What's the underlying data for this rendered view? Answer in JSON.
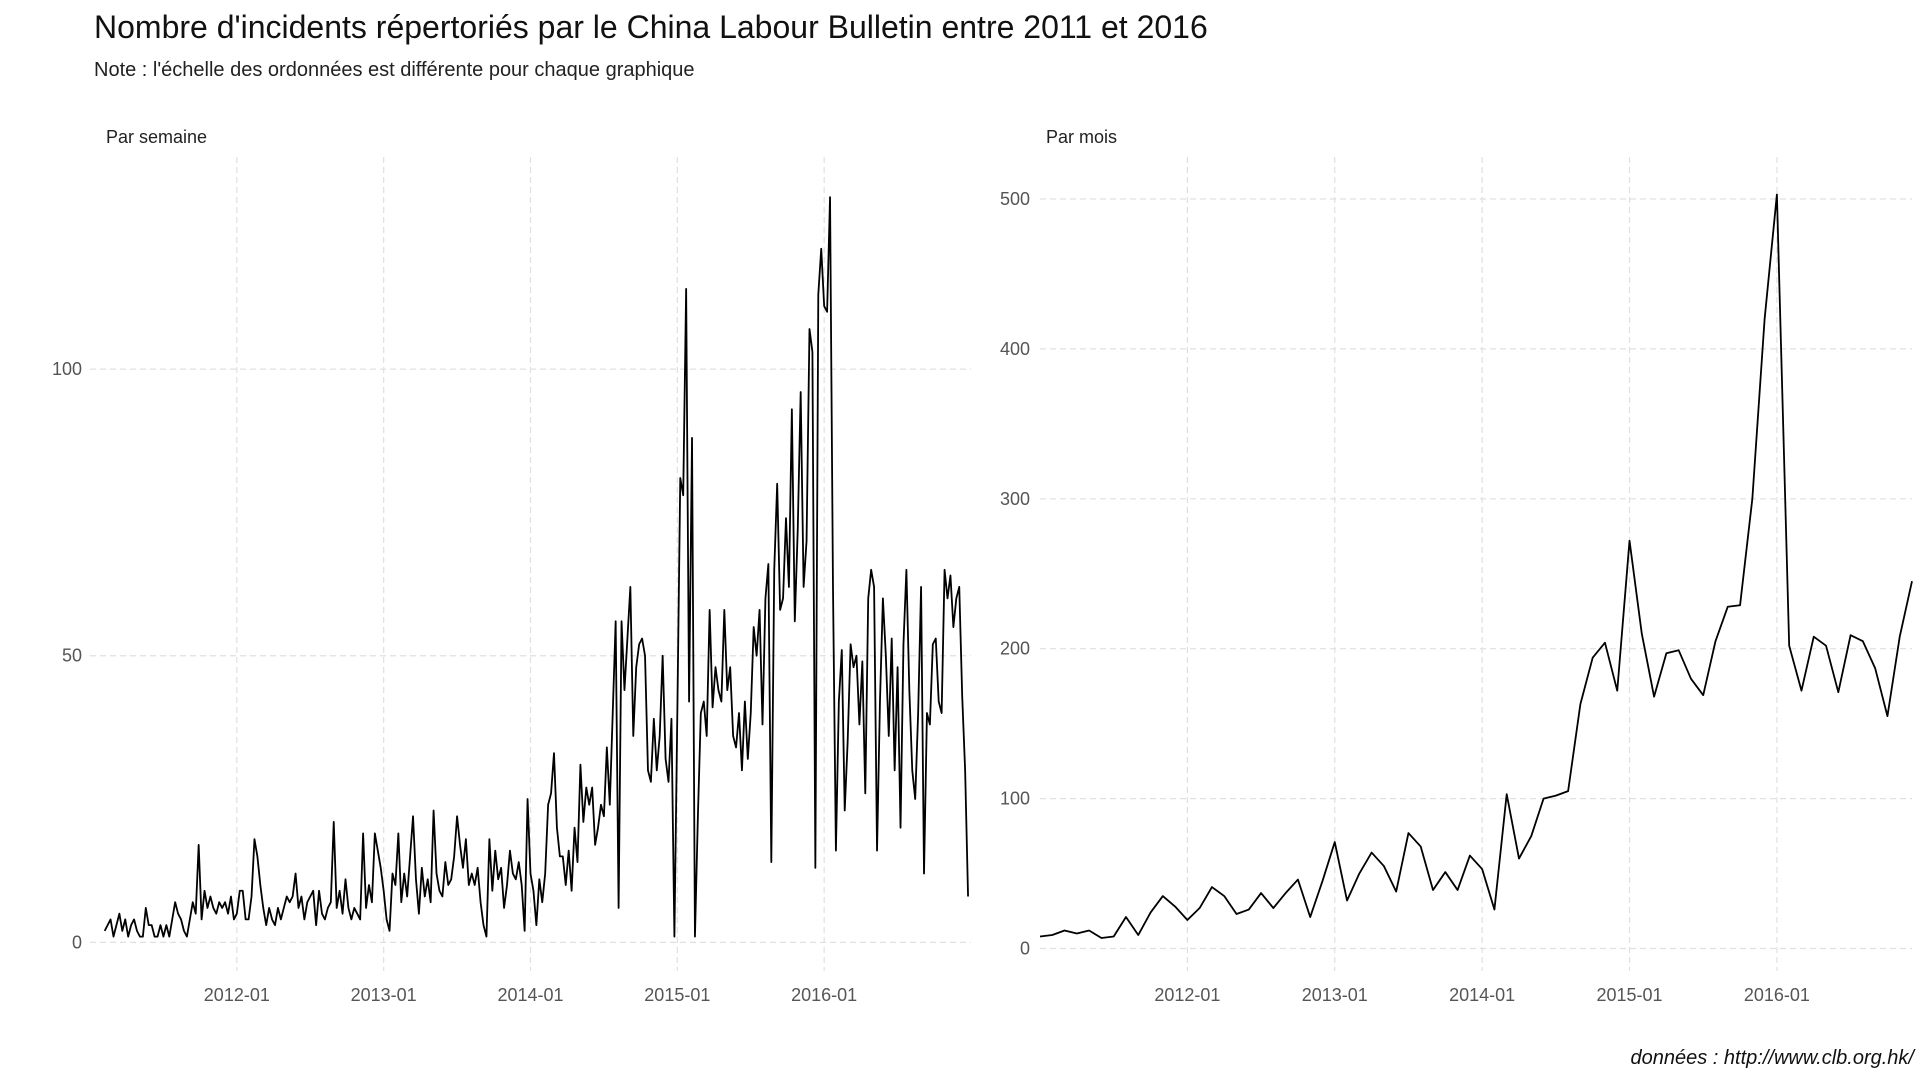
{
  "title": "Nombre d'incidents répertoriés par le China Labour Bulletin entre 2011 et 2016",
  "subtitle": "Note : l'échelle des ordonnées est différente pour chaque graphique",
  "caption": "données : http://www.clb.org.hk/",
  "chart_data": [
    {
      "type": "line",
      "title": "Par semaine",
      "color": "#000000",
      "grid": true,
      "xlim": [
        2011,
        2017
      ],
      "ylim": [
        -5,
        137
      ],
      "xticks": [
        {
          "value": 2012,
          "label": "2012-01"
        },
        {
          "value": 2013,
          "label": "2013-01"
        },
        {
          "value": 2014,
          "label": "2014-01"
        },
        {
          "value": 2015,
          "label": "2015-01"
        },
        {
          "value": 2016,
          "label": "2016-01"
        }
      ],
      "yticks": [
        0,
        50,
        100
      ],
      "x": [
        2011.1,
        2011.12,
        2011.14,
        2011.16,
        2011.18,
        2011.2,
        2011.22,
        2011.24,
        2011.26,
        2011.28,
        2011.3,
        2011.32,
        2011.34,
        2011.36,
        2011.38,
        2011.4,
        2011.42,
        2011.44,
        2011.46,
        2011.48,
        2011.5,
        2011.52,
        2011.54,
        2011.56,
        2011.58,
        2011.6,
        2011.62,
        2011.64,
        2011.66,
        2011.68,
        2011.7,
        2011.72,
        2011.74,
        2011.76,
        2011.78,
        2011.8,
        2011.82,
        2011.84,
        2011.86,
        2011.88,
        2011.9,
        2011.92,
        2011.94,
        2011.96,
        2011.98,
        2012,
        2012.02,
        2012.04,
        2012.06,
        2012.08,
        2012.1,
        2012.12,
        2012.14,
        2012.16,
        2012.18,
        2012.2,
        2012.22,
        2012.24,
        2012.26,
        2012.28,
        2012.3,
        2012.32,
        2012.34,
        2012.36,
        2012.38,
        2012.4,
        2012.42,
        2012.44,
        2012.46,
        2012.48,
        2012.5,
        2012.52,
        2012.54,
        2012.56,
        2012.58,
        2012.6,
        2012.62,
        2012.64,
        2012.66,
        2012.68,
        2012.7,
        2012.72,
        2012.74,
        2012.76,
        2012.78,
        2012.8,
        2012.82,
        2012.84,
        2012.86,
        2012.88,
        2012.9,
        2012.92,
        2012.94,
        2012.96,
        2012.98,
        2013,
        2013.02,
        2013.04,
        2013.06,
        2013.08,
        2013.1,
        2013.12,
        2013.14,
        2013.16,
        2013.18,
        2013.2,
        2013.22,
        2013.24,
        2013.26,
        2013.28,
        2013.3,
        2013.32,
        2013.34,
        2013.36,
        2013.38,
        2013.4,
        2013.42,
        2013.44,
        2013.46,
        2013.48,
        2013.5,
        2013.52,
        2013.54,
        2013.56,
        2013.58,
        2013.6,
        2013.62,
        2013.64,
        2013.66,
        2013.68,
        2013.7,
        2013.72,
        2013.74,
        2013.76,
        2013.78,
        2013.8,
        2013.82,
        2013.84,
        2013.86,
        2013.88,
        2013.9,
        2013.92,
        2013.94,
        2013.96,
        2013.98,
        2014,
        2014.02,
        2014.04,
        2014.06,
        2014.08,
        2014.1,
        2014.12,
        2014.14,
        2014.16,
        2014.18,
        2014.2,
        2014.22,
        2014.24,
        2014.26,
        2014.28,
        2014.3,
        2014.32,
        2014.34,
        2014.36,
        2014.38,
        2014.4,
        2014.42,
        2014.44,
        2014.46,
        2014.48,
        2014.5,
        2014.52,
        2014.54,
        2014.56,
        2014.58,
        2014.6,
        2014.62,
        2014.64,
        2014.66,
        2014.68,
        2014.7,
        2014.72,
        2014.74,
        2014.76,
        2014.78,
        2014.8,
        2014.82,
        2014.84,
        2014.86,
        2014.88,
        2014.9,
        2014.92,
        2014.94,
        2014.96,
        2014.98,
        2015,
        2015.02,
        2015.04,
        2015.06,
        2015.08,
        2015.1,
        2015.12,
        2015.14,
        2015.16,
        2015.18,
        2015.2,
        2015.22,
        2015.24,
        2015.26,
        2015.28,
        2015.3,
        2015.32,
        2015.34,
        2015.36,
        2015.38,
        2015.4,
        2015.42,
        2015.44,
        2015.46,
        2015.48,
        2015.5,
        2015.52,
        2015.54,
        2015.56,
        2015.58,
        2015.6,
        2015.62,
        2015.64,
        2015.66,
        2015.68,
        2015.7,
        2015.72,
        2015.74,
        2015.76,
        2015.78,
        2015.8,
        2015.82,
        2015.84,
        2015.86,
        2015.88,
        2015.9,
        2015.92,
        2015.94,
        2015.96,
        2015.98,
        2016,
        2016.02,
        2016.04,
        2016.06,
        2016.08,
        2016.1,
        2016.12,
        2016.14,
        2016.16,
        2016.18,
        2016.2,
        2016.22,
        2016.24,
        2016.26,
        2016.28,
        2016.3,
        2016.32,
        2016.34,
        2016.36,
        2016.38,
        2016.4,
        2016.42,
        2016.44,
        2016.46,
        2016.48,
        2016.5,
        2016.52,
        2016.54,
        2016.56,
        2016.58,
        2016.6,
        2016.62,
        2016.64,
        2016.66,
        2016.68,
        2016.7,
        2016.72,
        2016.74,
        2016.76,
        2016.78,
        2016.8,
        2016.82,
        2016.84,
        2016.86,
        2016.88,
        2016.9,
        2016.92,
        2016.94,
        2016.96,
        2016.98
      ],
      "values": [
        2,
        3,
        4,
        1,
        3,
        5,
        2,
        4,
        1,
        3,
        4,
        2,
        1,
        1,
        6,
        3,
        3,
        1,
        1,
        3,
        1,
        3,
        1,
        4,
        7,
        5,
        4,
        2,
        1,
        4,
        7,
        5,
        17,
        4,
        9,
        6,
        8,
        6,
        5,
        7,
        6,
        7,
        5,
        8,
        4,
        5,
        9,
        9,
        4,
        4,
        8,
        18,
        15,
        10,
        6,
        3,
        6,
        4,
        3,
        6,
        4,
        6,
        8,
        7,
        8,
        12,
        6,
        8,
        4,
        7,
        8,
        9,
        3,
        9,
        5,
        4,
        6,
        7,
        21,
        6,
        9,
        5,
        11,
        6,
        4,
        6,
        5,
        4,
        19,
        6,
        10,
        7,
        19,
        16,
        13,
        9,
        4,
        2,
        12,
        10,
        19,
        7,
        12,
        8,
        15,
        22,
        11,
        5,
        13,
        8,
        11,
        7,
        23,
        12,
        9,
        8,
        14,
        10,
        11,
        15,
        22,
        17,
        13,
        18,
        10,
        12,
        10,
        13,
        7,
        3,
        1,
        18,
        9,
        16,
        11,
        13,
        6,
        10,
        16,
        12,
        11,
        14,
        10,
        2,
        25,
        12,
        9,
        3,
        11,
        7,
        12,
        24,
        26,
        33,
        20,
        15,
        15,
        10,
        16,
        9,
        20,
        14,
        31,
        21,
        27,
        24,
        27,
        17,
        20,
        24,
        22,
        34,
        24,
        40,
        56,
        6,
        56,
        44,
        53,
        62,
        36,
        48,
        52,
        53,
        50,
        30,
        28,
        39,
        30,
        36,
        50,
        32,
        28,
        39,
        1,
        40,
        81,
        78,
        114,
        42,
        88,
        1,
        22,
        40,
        42,
        36,
        58,
        41,
        48,
        44,
        42,
        58,
        44,
        48,
        36,
        34,
        40,
        30,
        42,
        32,
        40,
        55,
        50,
        58,
        38,
        60,
        66,
        14,
        65,
        80,
        58,
        60,
        74,
        62,
        93,
        56,
        72,
        96,
        62,
        70,
        107,
        103,
        13,
        113,
        121,
        111,
        110,
        130,
        62,
        16,
        42,
        51,
        23,
        35,
        52,
        48,
        50,
        38,
        49,
        26,
        60,
        65,
        62,
        16,
        42,
        60,
        50,
        36,
        53,
        30,
        48,
        20,
        52,
        65,
        44,
        30,
        25,
        40,
        62,
        12,
        40,
        38,
        52,
        53,
        42,
        40,
        65,
        60,
        64,
        55,
        60,
        62,
        43,
        30,
        8
      ]
    },
    {
      "type": "line",
      "title": "Par mois",
      "color": "#000000",
      "grid": true,
      "xlim": [
        "2011-01",
        "2016-12"
      ],
      "ylim": [
        -15,
        528
      ],
      "xticks": [
        "2012-01",
        "2013-01",
        "2014-01",
        "2015-01",
        "2016-01"
      ],
      "yticks": [
        0,
        100,
        200,
        300,
        400,
        500
      ],
      "x": [
        "2011-01",
        "2011-02",
        "2011-03",
        "2011-04",
        "2011-05",
        "2011-06",
        "2011-07",
        "2011-08",
        "2011-09",
        "2011-10",
        "2011-11",
        "2011-12",
        "2012-01",
        "2012-02",
        "2012-03",
        "2012-04",
        "2012-05",
        "2012-06",
        "2012-07",
        "2012-08",
        "2012-09",
        "2012-10",
        "2012-11",
        "2012-12",
        "2013-01",
        "2013-02",
        "2013-03",
        "2013-04",
        "2013-05",
        "2013-06",
        "2013-07",
        "2013-08",
        "2013-09",
        "2013-10",
        "2013-11",
        "2013-12",
        "2014-01",
        "2014-02",
        "2014-03",
        "2014-04",
        "2014-05",
        "2014-06",
        "2014-07",
        "2014-08",
        "2014-09",
        "2014-10",
        "2014-11",
        "2014-12",
        "2015-01",
        "2015-02",
        "2015-03",
        "2015-04",
        "2015-05",
        "2015-06",
        "2015-07",
        "2015-08",
        "2015-09",
        "2015-10",
        "2015-11",
        "2015-12",
        "2016-01",
        "2016-02",
        "2016-03",
        "2016-04",
        "2016-05",
        "2016-06",
        "2016-07",
        "2016-08",
        "2016-09",
        "2016-10",
        "2016-11",
        "2016-12"
      ],
      "values": [
        8,
        9,
        12,
        10,
        12,
        7,
        8,
        21,
        9,
        24,
        35,
        28,
        19,
        27,
        41,
        35,
        23,
        26,
        37,
        27,
        37,
        46,
        21,
        45,
        71,
        32,
        50,
        64,
        55,
        38,
        77,
        68,
        39,
        51,
        39,
        62,
        53,
        26,
        103,
        60,
        75,
        100,
        102,
        105,
        163,
        194,
        204,
        172,
        272,
        210,
        168,
        197,
        199,
        180,
        169,
        205,
        228,
        229,
        300,
        420,
        503,
        202,
        172,
        208,
        202,
        171,
        209,
        205,
        187,
        155,
        208,
        245
      ]
    }
  ]
}
